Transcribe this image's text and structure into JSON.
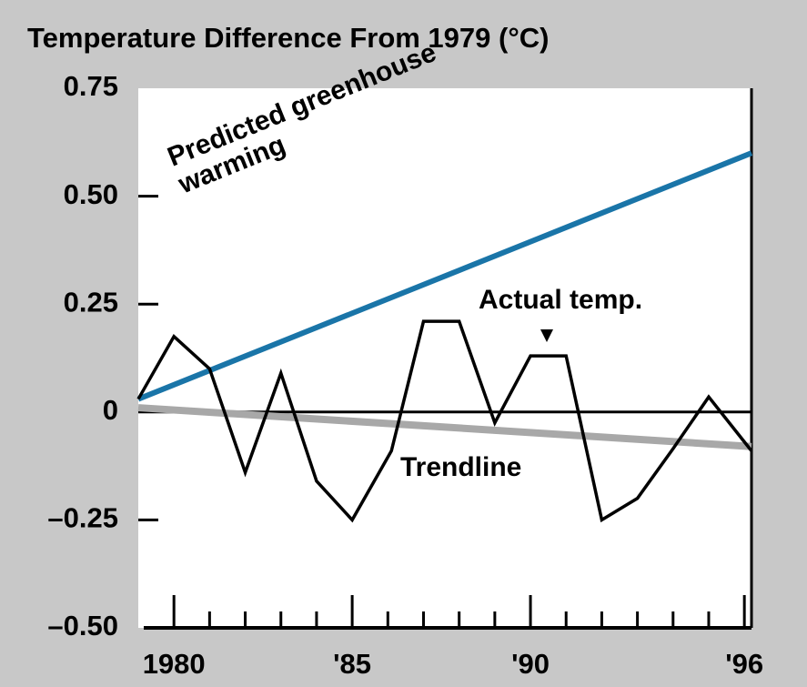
{
  "chart_data": {
    "type": "line",
    "title": "Temperature Difference From 1979 (°C)",
    "xlim": [
      1979,
      1996.2
    ],
    "ylim": [
      -0.5,
      0.75
    ],
    "yticks": [
      {
        "value": 0.75,
        "label": "0.75"
      },
      {
        "value": 0.5,
        "label": "0.50"
      },
      {
        "value": 0.25,
        "label": "0.25"
      },
      0,
      {
        "value": -0.25,
        "label": "–0.25"
      },
      {
        "value": -0.5,
        "label": "–0.50"
      }
    ],
    "xticks": [
      {
        "value": 1980,
        "label": "1980"
      },
      {
        "value": 1985,
        "label": "'85"
      },
      {
        "value": 1990,
        "label": "'90"
      },
      {
        "value": 1996,
        "label": "'96"
      }
    ],
    "xminor_ticks": [
      1981,
      1982,
      1983,
      1984,
      1986,
      1987,
      1988,
      1989,
      1991,
      1992,
      1993,
      1994,
      1995
    ],
    "series": [
      {
        "name": "Predicted greenhouse warming",
        "color": "#1a75a8",
        "x": [
          1979,
          1996.2
        ],
        "values": [
          0.03,
          0.6
        ]
      },
      {
        "name": "Trendline",
        "color": "#a8a8a8",
        "x": [
          1979,
          1996.2
        ],
        "values": [
          0.01,
          -0.08
        ]
      },
      {
        "name": "Actual temp.",
        "color": "#000000",
        "x": [
          1979,
          1980,
          1981,
          1982,
          1983,
          1984,
          1985,
          1986.1,
          1987,
          1988,
          1989,
          1990,
          1991,
          1992,
          1993,
          1994,
          1995,
          1996.2
        ],
        "values": [
          0.03,
          0.175,
          0.1,
          -0.14,
          0.09,
          -0.16,
          -0.25,
          -0.09,
          0.21,
          0.21,
          -0.025,
          0.13,
          0.13,
          -0.25,
          -0.2,
          -0.085,
          0.035,
          -0.09
        ]
      }
    ]
  }
}
